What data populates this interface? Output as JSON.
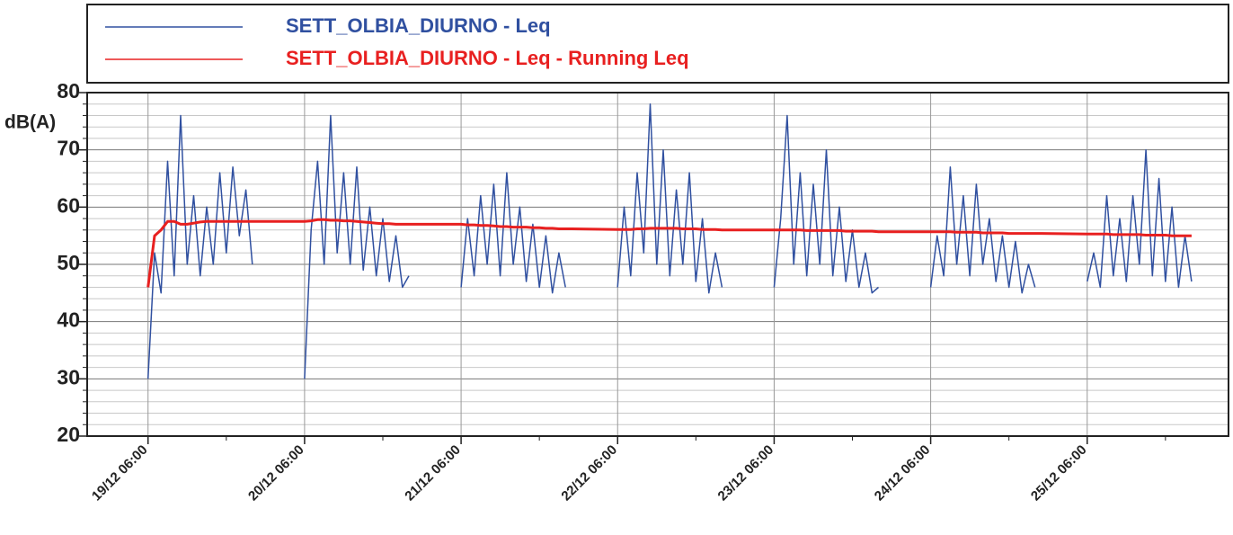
{
  "chart_data": {
    "type": "line",
    "ylabel": "dB(A)",
    "x": [
      "19/12 06:00",
      "19/12 07:00",
      "19/12 08:00",
      "19/12 09:00",
      "19/12 10:00",
      "19/12 11:00",
      "19/12 12:00",
      "19/12 13:00",
      "19/12 14:00",
      "19/12 15:00",
      "19/12 16:00",
      "19/12 17:00",
      "19/12 18:00",
      "19/12 19:00",
      "19/12 20:00",
      "19/12 21:00",
      "19/12 22:00",
      "19/12 23:00",
      "20/12 06:00",
      "20/12 07:00",
      "20/12 08:00",
      "20/12 09:00",
      "20/12 10:00",
      "20/12 11:00",
      "20/12 12:00",
      "20/12 13:00",
      "20/12 14:00",
      "20/12 15:00",
      "20/12 16:00",
      "20/12 17:00",
      "20/12 18:00",
      "20/12 19:00",
      "20/12 20:00",
      "20/12 21:00",
      "20/12 22:00",
      "20/12 23:00",
      "21/12 06:00",
      "21/12 07:00",
      "21/12 08:00",
      "21/12 09:00",
      "21/12 10:00",
      "21/12 11:00",
      "21/12 12:00",
      "21/12 13:00",
      "21/12 14:00",
      "21/12 15:00",
      "21/12 16:00",
      "21/12 17:00",
      "21/12 18:00",
      "21/12 19:00",
      "21/12 20:00",
      "21/12 21:00",
      "21/12 22:00",
      "21/12 23:00",
      "22/12 06:00",
      "22/12 07:00",
      "22/12 08:00",
      "22/12 09:00",
      "22/12 10:00",
      "22/12 11:00",
      "22/12 12:00",
      "22/12 13:00",
      "22/12 14:00",
      "22/12 15:00",
      "22/12 16:00",
      "22/12 17:00",
      "22/12 18:00",
      "22/12 19:00",
      "22/12 20:00",
      "22/12 21:00",
      "22/12 22:00",
      "22/12 23:00",
      "23/12 06:00",
      "23/12 07:00",
      "23/12 08:00",
      "23/12 09:00",
      "23/12 10:00",
      "23/12 11:00",
      "23/12 12:00",
      "23/12 13:00",
      "23/12 14:00",
      "23/12 15:00",
      "23/12 16:00",
      "23/12 17:00",
      "23/12 18:00",
      "23/12 19:00",
      "23/12 20:00",
      "23/12 21:00",
      "23/12 22:00",
      "23/12 23:00",
      "24/12 06:00",
      "24/12 07:00",
      "24/12 08:00",
      "24/12 09:00",
      "24/12 10:00",
      "24/12 11:00",
      "24/12 12:00",
      "24/12 13:00",
      "24/12 14:00",
      "24/12 15:00",
      "24/12 16:00",
      "24/12 17:00",
      "24/12 18:00",
      "24/12 19:00",
      "24/12 20:00",
      "24/12 21:00",
      "24/12 22:00",
      "24/12 23:00",
      "25/12 06:00",
      "25/12 07:00",
      "25/12 08:00",
      "25/12 09:00",
      "25/12 10:00",
      "25/12 11:00",
      "25/12 12:00",
      "25/12 13:00",
      "25/12 14:00",
      "25/12 15:00",
      "25/12 16:00",
      "25/12 17:00",
      "25/12 18:00",
      "25/12 19:00",
      "25/12 20:00",
      "25/12 21:00",
      "25/12 22:00"
    ],
    "series": [
      {
        "name": "SETT_OLBIA_DIURNO - Leq",
        "color": "#3050a0",
        "values": [
          30,
          52,
          45,
          68,
          48,
          76,
          50,
          62,
          48,
          60,
          50,
          66,
          52,
          67,
          55,
          63,
          50,
          null,
          30,
          56,
          68,
          50,
          76,
          52,
          66,
          50,
          67,
          49,
          60,
          48,
          58,
          47,
          55,
          46,
          48,
          null,
          46,
          58,
          48,
          62,
          50,
          64,
          48,
          66,
          50,
          60,
          47,
          57,
          46,
          55,
          45,
          52,
          46,
          null,
          46,
          60,
          48,
          66,
          52,
          78,
          50,
          70,
          48,
          63,
          50,
          66,
          47,
          58,
          45,
          52,
          46,
          null,
          46,
          58,
          76,
          50,
          66,
          48,
          64,
          50,
          70,
          48,
          60,
          47,
          56,
          46,
          52,
          45,
          46,
          null,
          46,
          55,
          48,
          67,
          50,
          62,
          48,
          64,
          50,
          58,
          47,
          55,
          46,
          54,
          45,
          50,
          46,
          null,
          47,
          52,
          46,
          62,
          48,
          58,
          47,
          62,
          50,
          70,
          48,
          65,
          47,
          60,
          46,
          55,
          47
        ]
      },
      {
        "name": "SETT_OLBIA_DIURNO - Leq - Running Leq",
        "color": "#e82020",
        "values": [
          46,
          55,
          56,
          57.5,
          57.5,
          57,
          57,
          57.2,
          57.4,
          57.5,
          57.5,
          57.5,
          57.5,
          57.5,
          57.5,
          57.5,
          57.5,
          57.5,
          57.5,
          57.6,
          57.8,
          57.8,
          57.7,
          57.7,
          57.6,
          57.6,
          57.5,
          57.4,
          57.3,
          57.2,
          57.1,
          57.1,
          57,
          57,
          57,
          57,
          57,
          56.9,
          56.9,
          56.8,
          56.8,
          56.7,
          56.6,
          56.6,
          56.5,
          56.5,
          56.5,
          56.4,
          56.4,
          56.3,
          56.3,
          56.2,
          56.2,
          56.2,
          56.1,
          56.1,
          56.1,
          56.2,
          56.2,
          56.3,
          56.3,
          56.3,
          56.3,
          56.3,
          56.2,
          56.2,
          56.2,
          56.1,
          56.1,
          56.1,
          56,
          56,
          56,
          56,
          56,
          56,
          56,
          55.9,
          55.9,
          55.9,
          55.9,
          55.9,
          55.9,
          55.8,
          55.8,
          55.8,
          55.8,
          55.8,
          55.7,
          55.7,
          55.7,
          55.7,
          55.7,
          55.7,
          55.6,
          55.6,
          55.6,
          55.6,
          55.5,
          55.5,
          55.5,
          55.5,
          55.4,
          55.4,
          55.4,
          55.4,
          55.4,
          55.4,
          55.3,
          55.3,
          55.3,
          55.3,
          55.2,
          55.2,
          55.2,
          55.2,
          55.2,
          55.1,
          55.1,
          55.1,
          55.1,
          55,
          55,
          55,
          55
        ]
      }
    ],
    "xlim": [
      "18/12 20:40",
      "26/12 03:40"
    ],
    "xticks": [
      "19/12 06:00",
      "20/12 06:00",
      "21/12 06:00",
      "22/12 06:00",
      "23/12 06:00",
      "24/12 06:00",
      "25/12 06:00"
    ],
    "xminorticks": [
      "19/12 18:00",
      "20/12 18:00",
      "21/12 18:00",
      "22/12 18:00",
      "23/12 18:00",
      "24/12 18:00",
      "25/12 18:00"
    ],
    "ylim": [
      20,
      80
    ],
    "yticks": [
      20,
      30,
      40,
      50,
      60,
      70,
      80
    ],
    "yminorticks": [
      22,
      24,
      26,
      28,
      32,
      34,
      36,
      38,
      42,
      44,
      46,
      48,
      52,
      54,
      56,
      58,
      62,
      64,
      66,
      68,
      72,
      74,
      76,
      78
    ],
    "grid": true
  }
}
